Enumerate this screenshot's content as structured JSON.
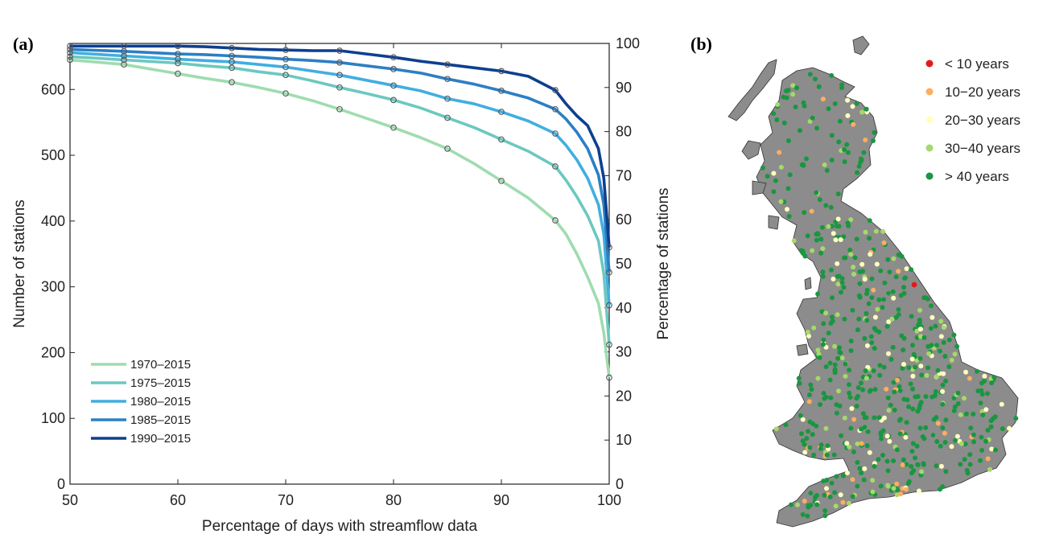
{
  "chart_data": [
    {
      "panel": "(a)",
      "type": "line",
      "xlabel": "Percentage of days with streamflow data",
      "ylabel": "Number of stations",
      "y2label": "Percentage of stations",
      "xlim": [
        50,
        100
      ],
      "ylim": [
        0,
        670
      ],
      "y2lim": [
        0,
        100
      ],
      "xticks": [
        "50",
        "60",
        "70",
        "80",
        "90",
        "100"
      ],
      "yticks": [
        "0",
        "100",
        "200",
        "300",
        "400",
        "500",
        "600"
      ],
      "y2ticks": [
        "0",
        "10",
        "20",
        "30",
        "40",
        "50",
        "60",
        "70",
        "80",
        "90",
        "100"
      ],
      "markers_every": 5,
      "legend_position": "lower-left",
      "series": [
        {
          "name": "1970–2015",
          "color": "#9fdcb0",
          "x": [
            50,
            55,
            60,
            62.5,
            65,
            67.5,
            70,
            72.5,
            75,
            77.5,
            80,
            82.5,
            85,
            87.5,
            90,
            92.5,
            95,
            96,
            97,
            98,
            99,
            99.5,
            100
          ],
          "y": [
            645,
            638,
            624,
            617,
            611,
            603,
            594,
            583,
            570,
            556,
            542,
            527,
            510,
            487,
            461,
            435,
            401,
            380,
            350,
            315,
            275,
            230,
            162
          ]
        },
        {
          "name": "1975–2015",
          "color": "#6cc8c0",
          "x": [
            50,
            55,
            60,
            62.5,
            65,
            67.5,
            70,
            72.5,
            75,
            77.5,
            80,
            82.5,
            85,
            87.5,
            90,
            92.5,
            95,
            96,
            97,
            98,
            99,
            99.5,
            100
          ],
          "y": [
            650,
            645,
            640,
            636,
            633,
            627,
            622,
            613,
            603,
            594,
            584,
            572,
            557,
            542,
            524,
            506,
            483,
            462,
            437,
            408,
            370,
            320,
            212
          ]
        },
        {
          "name": "1980–2015",
          "color": "#41aee0",
          "x": [
            50,
            55,
            60,
            62.5,
            65,
            67.5,
            70,
            72.5,
            75,
            77.5,
            80,
            82.5,
            85,
            87.5,
            90,
            92.5,
            95,
            96,
            97,
            98,
            99,
            99.5,
            100
          ],
          "y": [
            656,
            651,
            646,
            644,
            642,
            638,
            634,
            628,
            622,
            614,
            606,
            598,
            586,
            578,
            566,
            552,
            533,
            515,
            493,
            465,
            425,
            380,
            272
          ]
        },
        {
          "name": "1985–2015",
          "color": "#2c7fc4",
          "x": [
            50,
            55,
            60,
            62.5,
            65,
            67.5,
            70,
            72.5,
            75,
            77.5,
            80,
            82.5,
            85,
            87.5,
            90,
            92.5,
            95,
            96,
            97,
            98,
            99,
            99.5,
            100
          ],
          "y": [
            661,
            658,
            654,
            653,
            651,
            649,
            646,
            644,
            641,
            636,
            631,
            625,
            616,
            608,
            598,
            587,
            570,
            555,
            535,
            510,
            470,
            425,
            322
          ]
        },
        {
          "name": "1990–2015",
          "color": "#0d3f8f",
          "x": [
            50,
            55,
            60,
            62.5,
            65,
            67.5,
            70,
            72.5,
            75,
            77.5,
            80,
            82.5,
            85,
            87.5,
            90,
            92.5,
            95,
            96,
            97,
            98,
            99,
            99.5,
            100
          ],
          "y": [
            666,
            666,
            666,
            665,
            663,
            661,
            660,
            659,
            659,
            654,
            649,
            643,
            638,
            633,
            628,
            620,
            599,
            578,
            560,
            545,
            510,
            465,
            360
          ]
        }
      ]
    },
    {
      "panel": "(b)",
      "type": "scatter",
      "map": "UK gauging stations coloured by record length",
      "land_color": "#8c8c8c",
      "legend_position": "top-right",
      "categories": [
        {
          "label": "< 10 years",
          "color": "#e31a1c"
        },
        {
          "label": "10−20 years",
          "color": "#fdae61"
        },
        {
          "label": "20−30 years",
          "color": "#ffffbf"
        },
        {
          "label": "30−40 years",
          "color": "#a6d96a"
        },
        {
          "label": "> 40 years",
          "color": "#1a9641"
        }
      ]
    }
  ]
}
